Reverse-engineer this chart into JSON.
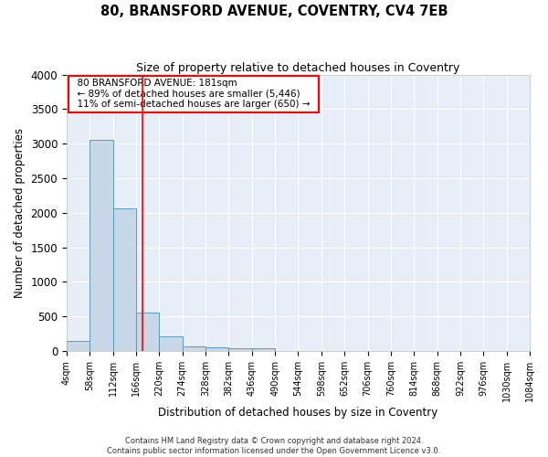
{
  "title": "80, BRANSFORD AVENUE, COVENTRY, CV4 7EB",
  "subtitle": "Size of property relative to detached houses in Coventry",
  "xlabel": "Distribution of detached houses by size in Coventry",
  "ylabel": "Number of detached properties",
  "bin_edges": [
    4,
    58,
    112,
    166,
    220,
    274,
    328,
    382,
    436,
    490,
    544,
    598,
    652,
    706,
    760,
    814,
    868,
    922,
    976,
    1030,
    1084
  ],
  "bar_heights": [
    140,
    3060,
    2060,
    560,
    210,
    70,
    50,
    45,
    45,
    0,
    0,
    0,
    0,
    0,
    0,
    0,
    0,
    0,
    0,
    0
  ],
  "bar_color": "#c8d8e8",
  "bar_edge_color": "#5b9abd",
  "red_line_x": 181,
  "annotation_text": "  80 BRANSFORD AVENUE: 181sqm  \n  ← 89% of detached houses are smaller (5,446)  \n  11% of semi-detached houses are larger (650) →  ",
  "annotation_box_color": "white",
  "annotation_box_edge_color": "red",
  "ylim": [
    0,
    4000
  ],
  "yticks": [
    0,
    500,
    1000,
    1500,
    2000,
    2500,
    3000,
    3500,
    4000
  ],
  "footer_line1": "Contains HM Land Registry data © Crown copyright and database right 2024.",
  "footer_line2": "Contains public sector information licensed under the Open Government Licence v3.0.",
  "bg_color": "#ffffff",
  "plot_bg_color": "#e8eef8",
  "grid_color": "#ffffff",
  "title_fontsize": 10.5,
  "subtitle_fontsize": 9,
  "ylabel_fontsize": 8.5,
  "xlabel_fontsize": 8.5,
  "tick_label_fontsize": 7,
  "annotation_fontsize": 7.5,
  "footer_fontsize": 6
}
